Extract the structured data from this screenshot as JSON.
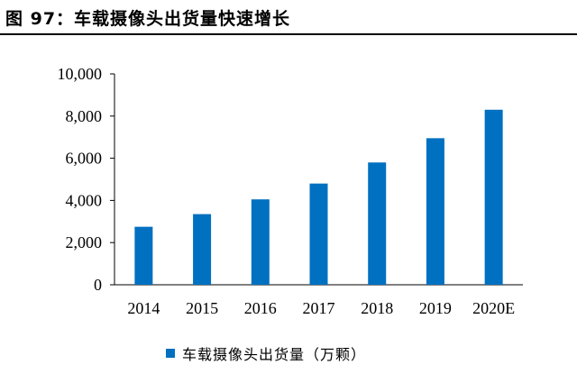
{
  "figure_title": "图 97：车载摄像头出货量快速增长",
  "colors": {
    "bar": "#0070c0",
    "axis": "#000000"
  },
  "chart_data": {
    "type": "bar",
    "title": "",
    "xlabel": "",
    "ylabel": "",
    "categories": [
      "2014",
      "2015",
      "2016",
      "2017",
      "2018",
      "2019",
      "2020E"
    ],
    "series": [
      {
        "name": "车载摄像头出货量（万颗）",
        "values": [
          2750,
          3350,
          4050,
          4800,
          5800,
          6950,
          8300
        ]
      }
    ],
    "ylim": [
      0,
      10000
    ],
    "yticks": [
      0,
      2000,
      4000,
      6000,
      8000,
      10000
    ],
    "ytick_labels": [
      "0",
      "2,000",
      "4,000",
      "6,000",
      "8,000",
      "10,000"
    ],
    "grid": false,
    "legend_position": "bottom"
  }
}
